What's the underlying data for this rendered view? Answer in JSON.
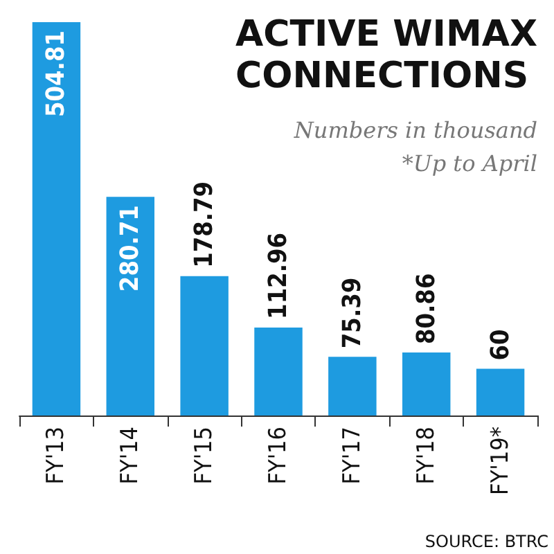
{
  "chart_data": {
    "type": "bar",
    "title": "ACTIVE WIMAX CONNECTIONS",
    "subtitle": "Numbers in thousand",
    "annotations": [
      "*Up to April",
      "SOURCE: BTRC"
    ],
    "categories": [
      "FY'13",
      "FY'14",
      "FY'15",
      "FY'16",
      "FY'17",
      "FY'18",
      "FY'19*"
    ],
    "values": [
      504.81,
      280.71,
      178.79,
      112.96,
      75.39,
      80.86,
      60
    ],
    "color": "#1e9be0",
    "data_labels": true
  }
}
